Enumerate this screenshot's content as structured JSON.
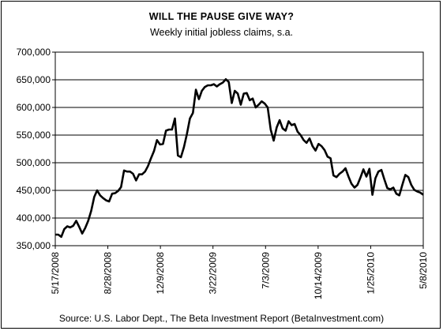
{
  "chart_data": {
    "type": "line",
    "title": "WILL THE PAUSE GIVE WAY?",
    "subtitle": "Weekly initial jobless claims, s.a.",
    "source": "Source: U.S. Labor Dept., The Beta Investment Report (BetaInvestment.com)",
    "ylim": [
      350000,
      700000
    ],
    "y_ticks": [
      350000,
      400000,
      450000,
      500000,
      550000,
      600000,
      650000,
      700000
    ],
    "y_tick_labels": [
      "350,000",
      "400,000",
      "450,000",
      "500,000",
      "550,000",
      "600,000",
      "650,000",
      "700,000"
    ],
    "x_tick_labels": [
      "5/17/2008",
      "8/28/2008",
      "12/9/2008",
      "3/22/2009",
      "7/3/2009",
      "10/14/2009",
      "1/25/2010",
      "5/8/2010"
    ],
    "grid": true,
    "series": [
      {
        "values": [
          370000,
          370000,
          366000,
          380000,
          385000,
          383000,
          386000,
          395000,
          384000,
          372000,
          382000,
          395000,
          413000,
          438000,
          450000,
          441000,
          436000,
          432000,
          430000,
          444000,
          445000,
          449000,
          456000,
          486000,
          484000,
          484000,
          480000,
          468000,
          479000,
          479000,
          484000,
          494000,
          508000,
          521000,
          541000,
          533000,
          534000,
          558000,
          560000,
          560000,
          580000,
          513000,
          510000,
          528000,
          552000,
          580000,
          590000,
          632000,
          615000,
          630000,
          637000,
          640000,
          640000,
          642000,
          638000,
          642000,
          645000,
          651000,
          646000,
          608000,
          630000,
          625000,
          605000,
          625000,
          626000,
          613000,
          616000,
          600000,
          605000,
          611000,
          607000,
          600000,
          560000,
          540000,
          564000,
          577000,
          562000,
          558000,
          575000,
          568000,
          570000,
          556000,
          550000,
          541000,
          536000,
          544000,
          530000,
          522000,
          534000,
          530000,
          523000,
          511000,
          508000,
          477000,
          474000,
          480000,
          484000,
          490000,
          475000,
          462000,
          455000,
          460000,
          473000,
          488000,
          475000,
          489000,
          442000,
          472000,
          484000,
          487000,
          470000,
          454000,
          452000,
          455000,
          444000,
          441000,
          460000,
          478000,
          474000,
          460000,
          451000,
          448000,
          446000,
          442000
        ]
      }
    ]
  }
}
